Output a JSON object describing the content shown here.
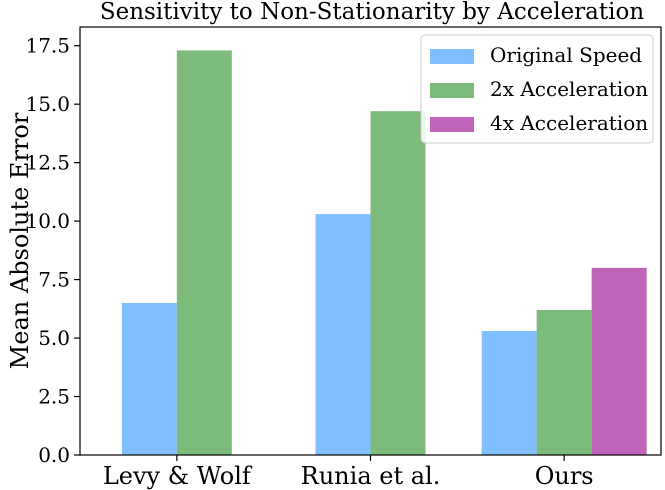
{
  "chart_data": {
    "type": "bar",
    "title": "Sensitivity to Non-Stationarity by Acceleration",
    "xlabel": "",
    "ylabel": "Mean Absolute Error",
    "ylim": [
      0,
      18.3
    ],
    "yticks": [
      "0.0",
      "2.5",
      "5.0",
      "7.5",
      "10.0",
      "12.5",
      "15.0",
      "17.5"
    ],
    "categories": [
      "Levy & Wolf",
      "Runia et al.",
      "Ours"
    ],
    "series": [
      {
        "name": "Original Speed",
        "color": "#7fbfff",
        "values": [
          6.5,
          10.3,
          5.3
        ]
      },
      {
        "name": "2x Acceleration",
        "color": "#7dbb7a",
        "values": [
          17.3,
          14.7,
          6.2
        ]
      },
      {
        "name": "4x Acceleration",
        "color": "#c064b9",
        "values": [
          null,
          null,
          8.0
        ]
      }
    ],
    "legend_position": "top-right",
    "grid": false
  }
}
